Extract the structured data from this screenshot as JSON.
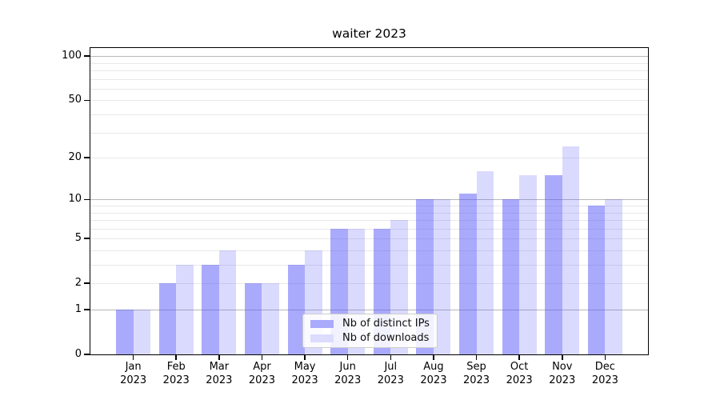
{
  "chart_data": {
    "type": "bar",
    "title": "waiter 2023",
    "categories": [
      "Jan",
      "Feb",
      "Mar",
      "Apr",
      "May",
      "Jun",
      "Jul",
      "Aug",
      "Sep",
      "Oct",
      "Nov",
      "Dec"
    ],
    "year_label": "2023",
    "series": [
      {
        "name": "Nb of distinct IPs",
        "values": [
          1,
          2,
          3,
          2,
          3,
          6,
          6,
          10,
          11,
          10,
          15,
          9
        ],
        "color": "rgba(85,85,250,0.5)",
        "legend_color": "#aaaafc"
      },
      {
        "name": "Nb of downloads",
        "values": [
          1,
          3,
          4,
          2,
          4,
          6,
          7,
          10,
          16,
          15,
          24,
          10
        ],
        "color": "rgba(85,85,250,0.22)",
        "legend_color": "#dcdcfd"
      }
    ],
    "xlabel": "",
    "ylabel": "",
    "yaxis": {
      "scale": "log1p",
      "ticks": [
        0,
        1,
        2,
        5,
        10,
        20,
        50,
        100
      ],
      "ylim": [
        0,
        113
      ],
      "grid_major": [
        1,
        10,
        100
      ],
      "grid_minor": [
        2,
        3,
        4,
        5,
        6,
        7,
        8,
        9,
        20,
        30,
        40,
        50,
        60,
        70,
        80,
        90
      ]
    },
    "legend_position": "lower center",
    "colors": {
      "grid_major": "#b8b8b8",
      "grid_minor": "#e8e8e8",
      "spine": "#000000",
      "text": "#000000"
    }
  }
}
